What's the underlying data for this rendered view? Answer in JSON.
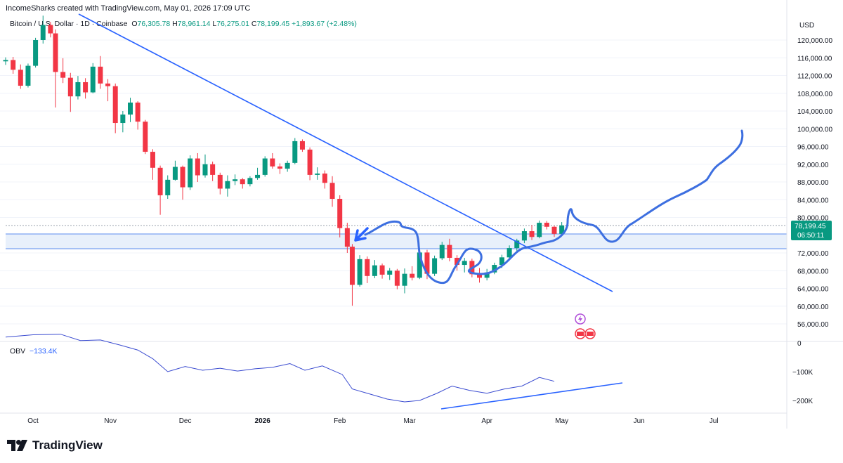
{
  "header": {
    "caption": "IncomeSharks created with TradingView.com, May 01, 2026 17:09 UTC"
  },
  "legend": {
    "symbol": "Bitcoin / U.S. Dollar · 1D · Coinbase",
    "open_label": "O",
    "open": "76,305.78",
    "high_label": "H",
    "high": "78,961.14",
    "low_label": "L",
    "low": "76,275.01",
    "close_label": "C",
    "close": "78,199.45",
    "change": "+1,893.67 (+2.48%)"
  },
  "price_axis": {
    "currency": "USD",
    "ticks": [
      "120,000.00",
      "116,000.00",
      "112,000.00",
      "108,000.00",
      "104,000.00",
      "100,000.00",
      "96,000.00",
      "92,000.00",
      "88,000.00",
      "84,000.00",
      "80,000.00",
      "72,000.00",
      "68,000.00",
      "64,000.00",
      "60,000.00",
      "56,000.00"
    ],
    "last_price": "78,199.45",
    "countdown": "06:50:11"
  },
  "obv": {
    "label": "OBV",
    "value": "−133.4K",
    "ticks": [
      "0",
      "−100K",
      "−200K"
    ]
  },
  "time_axis": {
    "ticks": [
      "Oct",
      "Nov",
      "Dec",
      "2026",
      "Feb",
      "Mar",
      "Apr",
      "May",
      "Jun",
      "Jul"
    ]
  },
  "brand": {
    "name": "TradingView"
  },
  "colors": {
    "up": "#089981",
    "down": "#f23645",
    "drawing": "#2962ff",
    "hand_drawn": "#3d6fe0",
    "zone": "#e8f0fb"
  },
  "chart_data": [
    {
      "type": "candlestick",
      "title": "Bitcoin / U.S. Dollar · 1D · Coinbase",
      "ylabel": "USD",
      "ylim": [
        54000,
        124000
      ],
      "x_start": "2025-09-20",
      "x_end": "2026-07-10",
      "candles": [
        [
          "2025-09-20",
          115200,
          116100,
          114400,
          115500
        ],
        [
          "2025-09-23",
          115500,
          116200,
          112400,
          113300
        ],
        [
          "2025-09-26",
          113300,
          114500,
          109000,
          109700
        ],
        [
          "2025-09-29",
          109700,
          114700,
          109300,
          114200
        ],
        [
          "2025-10-02",
          114200,
          120500,
          113800,
          120000
        ],
        [
          "2025-10-05",
          120000,
          125500,
          119200,
          123400
        ],
        [
          "2025-10-08",
          123400,
          124100,
          120600,
          121500
        ],
        [
          "2025-10-10",
          121500,
          122400,
          104800,
          112800
        ],
        [
          "2025-10-13",
          112800,
          115900,
          110300,
          111500
        ],
        [
          "2025-10-16",
          111500,
          112600,
          103800,
          107300
        ],
        [
          "2025-10-19",
          107300,
          111900,
          106600,
          110500
        ],
        [
          "2025-10-22",
          110500,
          111400,
          106800,
          108200
        ],
        [
          "2025-10-25",
          108200,
          114800,
          108000,
          114000
        ],
        [
          "2025-10-28",
          114000,
          116400,
          109000,
          110200
        ],
        [
          "2025-10-31",
          110200,
          111200,
          106200,
          109600
        ],
        [
          "2025-11-03",
          109600,
          110200,
          99000,
          101300
        ],
        [
          "2025-11-06",
          101300,
          104000,
          99200,
          103200
        ],
        [
          "2025-11-09",
          103200,
          107000,
          101500,
          105900
        ],
        [
          "2025-11-12",
          105900,
          106200,
          99800,
          101600
        ],
        [
          "2025-11-15",
          101600,
          102000,
          94300,
          94800
        ],
        [
          "2025-11-18",
          94800,
          95400,
          88500,
          91200
        ],
        [
          "2025-11-21",
          91200,
          91700,
          80600,
          85000
        ],
        [
          "2025-11-24",
          85000,
          89500,
          84200,
          88500
        ],
        [
          "2025-11-27",
          88500,
          92800,
          88300,
          91400
        ],
        [
          "2025-11-30",
          91400,
          91700,
          84000,
          86800
        ],
        [
          "2025-12-03",
          86800,
          94000,
          86200,
          93300
        ],
        [
          "2025-12-06",
          93300,
          94500,
          88000,
          89500
        ],
        [
          "2025-12-09",
          89500,
          94200,
          89000,
          92000
        ],
        [
          "2025-12-12",
          92000,
          92600,
          88200,
          89600
        ],
        [
          "2025-12-15",
          89600,
          90100,
          85200,
          86500
        ],
        [
          "2025-12-18",
          86500,
          89500,
          84700,
          88200
        ],
        [
          "2025-12-21",
          88200,
          89700,
          87300,
          88600
        ],
        [
          "2025-12-24",
          88600,
          88900,
          86500,
          87500
        ],
        [
          "2025-12-27",
          87500,
          89300,
          87000,
          88900
        ],
        [
          "2025-12-30",
          88900,
          91200,
          88500,
          89600
        ],
        [
          "2026-01-02",
          89600,
          93800,
          89200,
          93300
        ],
        [
          "2026-01-05",
          93300,
          94500,
          91000,
          91500
        ],
        [
          "2026-01-08",
          91500,
          92200,
          89800,
          91000
        ],
        [
          "2026-01-11",
          91000,
          92800,
          90300,
          92300
        ],
        [
          "2026-01-14",
          92300,
          97900,
          92000,
          97200
        ],
        [
          "2026-01-17",
          97200,
          97600,
          94800,
          95300
        ],
        [
          "2026-01-20",
          95300,
          95800,
          88400,
          89600
        ],
        [
          "2026-01-23",
          89600,
          91300,
          88500,
          89900
        ],
        [
          "2026-01-26",
          89900,
          90600,
          86500,
          87800
        ],
        [
          "2026-01-29",
          87800,
          89300,
          82400,
          84200
        ],
        [
          "2026-02-01",
          84200,
          85000,
          75500,
          77600
        ],
        [
          "2026-02-04",
          77600,
          78800,
          72000,
          73400
        ],
        [
          "2026-02-06",
          73400,
          74000,
          60100,
          64800
        ],
        [
          "2026-02-09",
          64800,
          71500,
          64400,
          70600
        ],
        [
          "2026-02-12",
          70600,
          71200,
          65200,
          66800
        ],
        [
          "2026-02-15",
          66800,
          70400,
          66300,
          69200
        ],
        [
          "2026-02-18",
          69200,
          69600,
          66200,
          67100
        ],
        [
          "2026-02-21",
          67100,
          68600,
          65900,
          68000
        ],
        [
          "2026-02-24",
          68000,
          68400,
          63800,
          64600
        ],
        [
          "2026-02-27",
          64600,
          68500,
          62900,
          67300
        ],
        [
          "2026-03-02",
          67300,
          69000,
          65800,
          66400
        ],
        [
          "2026-03-05",
          66400,
          73100,
          66100,
          72100
        ],
        [
          "2026-03-08",
          72100,
          72700,
          66100,
          67300
        ],
        [
          "2026-03-11",
          67300,
          71400,
          66800,
          70800
        ],
        [
          "2026-03-14",
          70800,
          74500,
          70400,
          73800
        ],
        [
          "2026-03-17",
          73800,
          75200,
          70100,
          70900
        ],
        [
          "2026-03-20",
          70900,
          71500,
          68000,
          69300
        ],
        [
          "2026-03-23",
          69300,
          70900,
          67600,
          70200
        ],
        [
          "2026-03-26",
          70200,
          70700,
          66500,
          67200
        ],
        [
          "2026-03-29",
          67200,
          68600,
          65300,
          66400
        ],
        [
          "2026-04-01",
          66400,
          68400,
          65800,
          67600
        ],
        [
          "2026-04-04",
          67600,
          69800,
          67200,
          69300
        ],
        [
          "2026-04-07",
          69300,
          71600,
          68600,
          71000
        ],
        [
          "2026-04-10",
          71000,
          73700,
          70700,
          73100
        ],
        [
          "2026-04-13",
          73100,
          75200,
          72400,
          74800
        ],
        [
          "2026-04-16",
          74800,
          77500,
          74200,
          76900
        ],
        [
          "2026-04-19",
          76900,
          78300,
          74900,
          75600
        ],
        [
          "2026-04-22",
          75600,
          79300,
          75300,
          78800
        ],
        [
          "2026-04-25",
          78800,
          79200,
          77300,
          77900
        ],
        [
          "2026-04-28",
          77900,
          78100,
          75600,
          76300
        ],
        [
          "2026-05-01",
          76305.78,
          78961.14,
          76275.01,
          78199.45
        ]
      ],
      "last_price": 78199.45
    },
    {
      "type": "line",
      "title": "OBV",
      "ylim": [
        -260000,
        25000
      ],
      "x": [
        "2025-09-20",
        "2025-10-01",
        "2025-10-12",
        "2025-10-20",
        "2025-10-28",
        "2025-11-05",
        "2025-11-12",
        "2025-11-18",
        "2025-11-24",
        "2025-12-01",
        "2025-12-08",
        "2025-12-15",
        "2025-12-22",
        "2025-12-29",
        "2026-01-05",
        "2026-01-12",
        "2026-01-18",
        "2026-01-25",
        "2026-02-02",
        "2026-02-06",
        "2026-02-12",
        "2026-02-20",
        "2026-02-27",
        "2026-03-05",
        "2026-03-12",
        "2026-03-18",
        "2026-03-25",
        "2026-04-01",
        "2026-04-08",
        "2026-04-15",
        "2026-04-22",
        "2026-04-28"
      ],
      "values": [
        20000,
        28000,
        30000,
        8000,
        10000,
        -8000,
        -25000,
        -55000,
        -100000,
        -82000,
        -95000,
        -88000,
        -98000,
        -90000,
        -85000,
        -72000,
        -95000,
        -80000,
        -110000,
        -160000,
        -175000,
        -195000,
        -205000,
        -200000,
        -175000,
        -150000,
        -165000,
        -175000,
        -160000,
        -150000,
        -120000,
        -133400
      ]
    }
  ]
}
